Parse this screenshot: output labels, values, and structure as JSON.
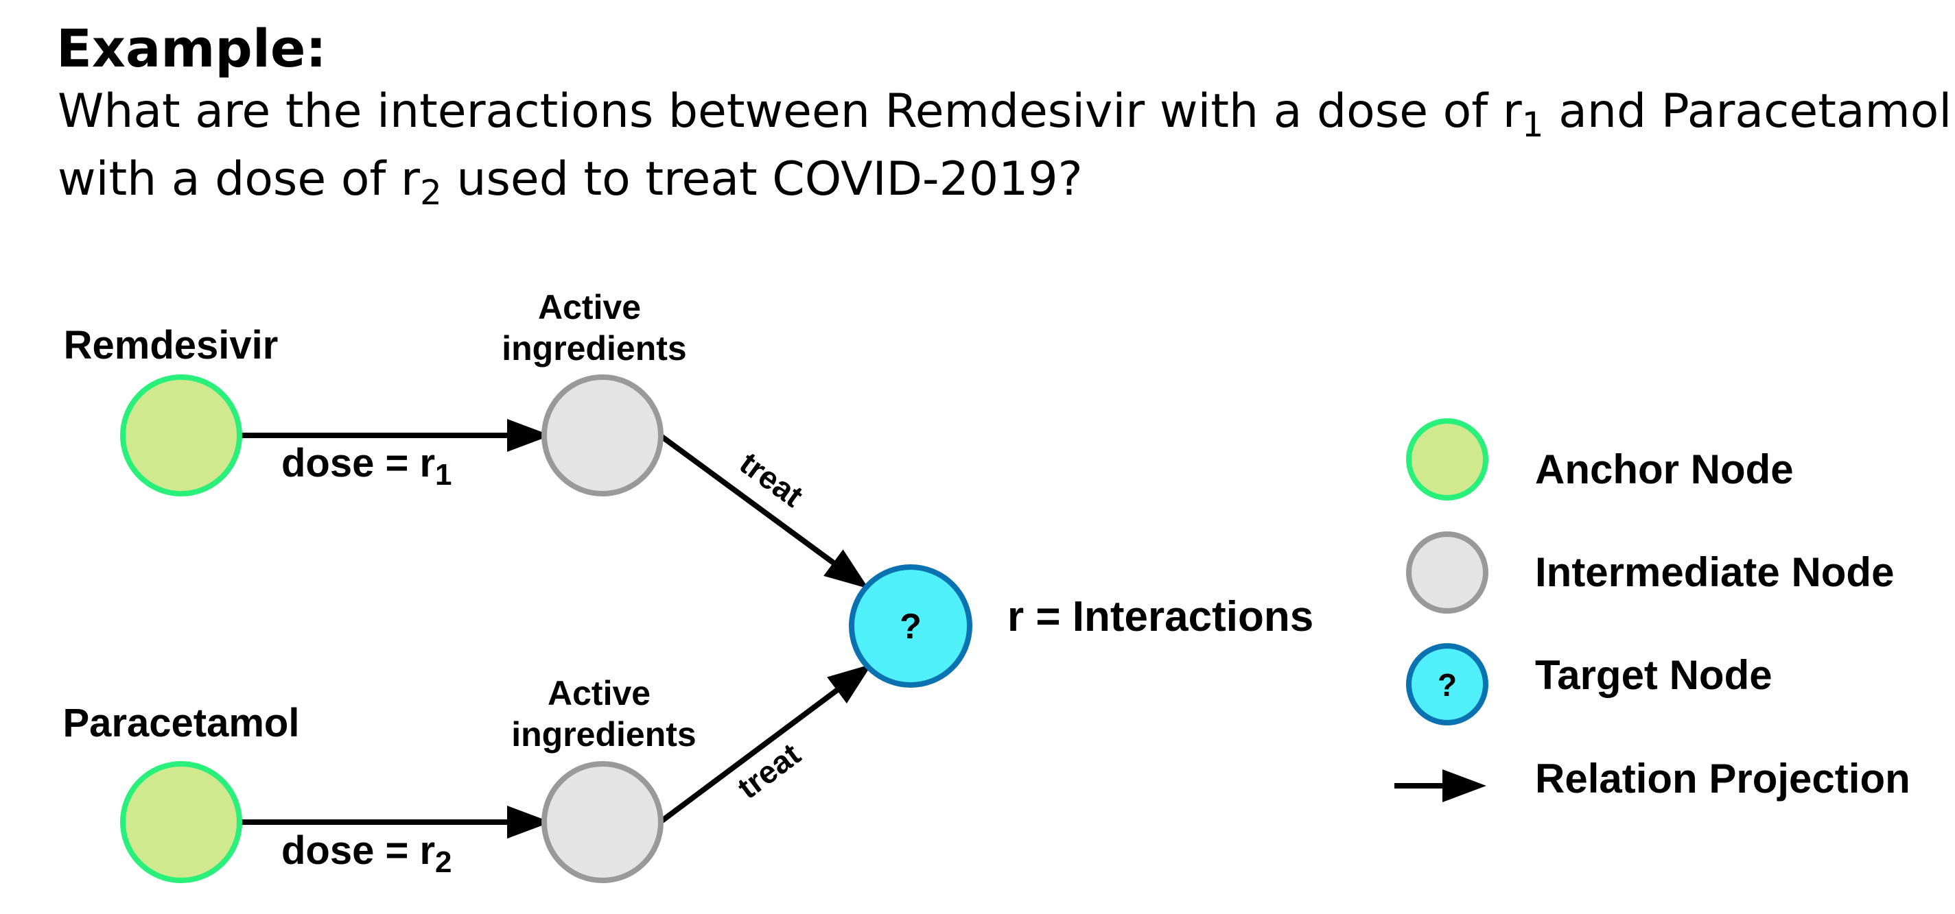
{
  "header": {
    "heading": "Example:",
    "question_line1_part1": "What are the interactions between Remdesivir with a dose of r",
    "question_line1_sub": "1",
    "question_line1_part2": " and Paracetamol",
    "question_line2_part1": "with a dose of r",
    "question_line2_sub": "2",
    "question_line2_part2": " used to treat COVID-2019?"
  },
  "diagram": {
    "node_remdesivir": {
      "label": "Remdesivir"
    },
    "node_paracetamol": {
      "label": "Paracetamol"
    },
    "node_active_top": {
      "label_line1": "Active",
      "label_line2": "ingredients"
    },
    "node_active_bottom": {
      "label_line1": "Active",
      "label_line2": "ingredients"
    },
    "node_target": {
      "symbol": "?"
    },
    "edge_dose_r1": {
      "prefix": "dose = r",
      "sub": "1"
    },
    "edge_dose_r2": {
      "prefix": "dose = r",
      "sub": "2"
    },
    "edge_treat_top": {
      "label": "treat"
    },
    "edge_treat_bottom": {
      "label": "treat"
    },
    "target_caption": "r = Interactions"
  },
  "legend": {
    "anchor": "Anchor Node",
    "intermediate": "Intermediate Node",
    "target": "Target Node",
    "target_symbol": "?",
    "relation": "Relation Projection"
  },
  "colors": {
    "anchor_fill": "#d0e98e",
    "anchor_stroke": "#28f07a",
    "intermediate_fill": "#e4e4e4",
    "intermediate_stroke": "#999999",
    "target_fill": "#4ff0fa",
    "target_stroke": "#0a72b0",
    "edge": "#000000"
  }
}
